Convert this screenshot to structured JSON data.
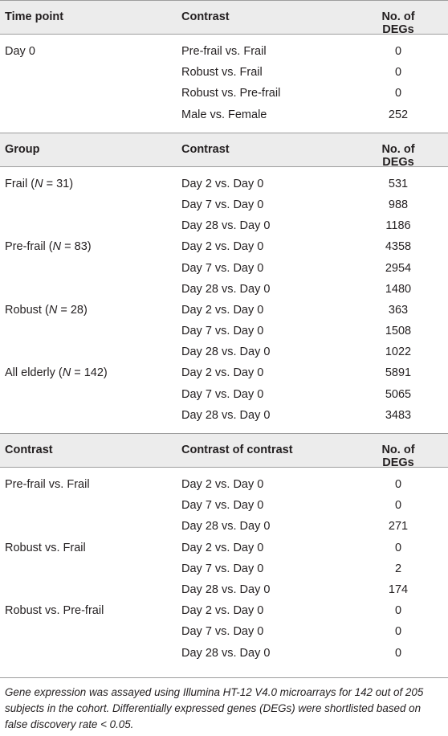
{
  "sections": [
    {
      "headers": [
        "Time point",
        "Contrast",
        "No. of DEGs"
      ],
      "rows": [
        [
          "Day 0",
          "Pre-frail vs. Frail",
          "0"
        ],
        [
          "",
          "Robust vs. Frail",
          "0"
        ],
        [
          "",
          "Robust vs. Pre-frail",
          "0"
        ],
        [
          "",
          "Male vs. Female",
          "252"
        ]
      ]
    },
    {
      "headers": [
        "Group",
        "Contrast",
        "No. of DEGs"
      ],
      "rows": [
        [
          "Frail (N = 31)",
          "Day 2 vs. Day 0",
          "531"
        ],
        [
          "",
          "Day 7 vs. Day 0",
          "988"
        ],
        [
          "",
          "Day 28 vs. Day 0",
          "1186"
        ],
        [
          "Pre-frail (N = 83)",
          "Day 2 vs. Day 0",
          "4358"
        ],
        [
          "",
          "Day 7 vs. Day 0",
          "2954"
        ],
        [
          "",
          "Day 28 vs. Day 0",
          "1480"
        ],
        [
          "Robust (N = 28)",
          "Day 2 vs. Day 0",
          "363"
        ],
        [
          "",
          "Day 7 vs. Day 0",
          "1508"
        ],
        [
          "",
          "Day 28 vs. Day 0",
          "1022"
        ],
        [
          "All elderly (N = 142)",
          "Day 2 vs. Day 0",
          "5891"
        ],
        [
          "",
          "Day 7 vs. Day 0",
          "5065"
        ],
        [
          "",
          "Day 28 vs. Day 0",
          "3483"
        ]
      ]
    },
    {
      "headers": [
        "Contrast",
        "Contrast of contrast",
        "No. of DEGs"
      ],
      "rows": [
        [
          "Pre-frail vs. Frail",
          "Day 2 vs. Day 0",
          "0"
        ],
        [
          "",
          "Day 7 vs. Day 0",
          "0"
        ],
        [
          "",
          "Day 28 vs. Day 0",
          "271"
        ],
        [
          "Robust vs. Frail",
          "Day 2 vs. Day 0",
          "0"
        ],
        [
          "",
          "Day 7 vs. Day 0",
          "2"
        ],
        [
          "",
          "Day 28 vs. Day 0",
          "174"
        ],
        [
          "Robust vs. Pre-frail",
          "Day 2 vs. Day 0",
          "0"
        ],
        [
          "",
          "Day 7 vs. Day 0",
          "0"
        ],
        [
          "",
          "Day 28 vs. Day 0",
          "0"
        ]
      ]
    }
  ],
  "footnote": "Gene expression was assayed using Illumina HT-12 V4.0 microarrays for 142 out of 205 subjects in the cohort. Differentially expressed genes (DEGs) were shortlisted based on false discovery rate < 0.05."
}
